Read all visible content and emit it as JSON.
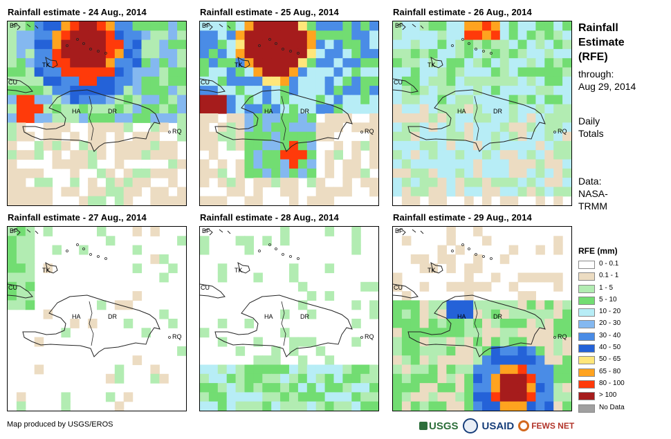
{
  "panels": [
    {
      "title": "Rainfall estimate - 24 Aug., 2014",
      "date": "24 Aug., 2014"
    },
    {
      "title": "Rainfall estimate - 25 Aug., 2014",
      "date": "25 Aug., 2014"
    },
    {
      "title": "Rainfall estimate - 26 Aug., 2014",
      "date": "26 Aug., 2014"
    },
    {
      "title": "Rainfall estimate - 27 Aug., 2014",
      "date": "27 Aug., 2014"
    },
    {
      "title": "Rainfall estimate - 28 Aug., 2014",
      "date": "28 Aug., 2014"
    },
    {
      "title": "Rainfall estimate - 29 Aug., 2014",
      "date": "29 Aug., 2014"
    }
  ],
  "map_labels": {
    "bf": "BF",
    "tk": "TK",
    "cu": "CU",
    "ha": "HA",
    "dr": "DR",
    "rq": "RQ"
  },
  "side": {
    "title_line1": "Rainfall",
    "title_line2": "Estimate",
    "title_line3": "(RFE)",
    "through": "through:",
    "through_date": "Aug 29, 2014",
    "daily": "Daily",
    "totals": "Totals",
    "data": "Data:",
    "source1": "NASA-",
    "source2": "TRMM"
  },
  "legend": {
    "title": "RFE (mm)",
    "items": [
      {
        "label": "0 - 0.1",
        "color": "#ffffff"
      },
      {
        "label": "0.1 - 1",
        "color": "#ecdcc2"
      },
      {
        "label": "1 - 5",
        "color": "#b2ecb2"
      },
      {
        "label": "5 - 10",
        "color": "#72dd72"
      },
      {
        "label": "10 - 20",
        "color": "#b7edf6"
      },
      {
        "label": "20 - 30",
        "color": "#84b8f0"
      },
      {
        "label": "30 - 40",
        "color": "#4a8ce6"
      },
      {
        "label": "40 - 50",
        "color": "#2462d8"
      },
      {
        "label": "50 - 65",
        "color": "#ffe67a"
      },
      {
        "label": "65 - 80",
        "color": "#ffa31f"
      },
      {
        "label": "80 - 100",
        "color": "#ff3a0a"
      },
      {
        "label": "> 100",
        "color": "#a61c1c"
      },
      {
        "label": "No Data",
        "color": "#a0a0a0"
      }
    ]
  },
  "footer": {
    "credit": "Map produced by USGS/EROS",
    "logo_usgs": "USGS",
    "logo_usaid": "USAID",
    "logo_fews": "FEWS NET"
  }
}
